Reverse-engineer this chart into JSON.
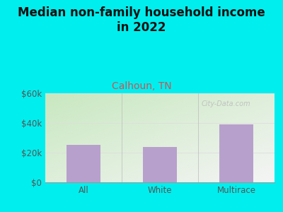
{
  "title": "Median non-family household income\nin 2022",
  "subtitle": "Calhoun, TN",
  "categories": [
    "All",
    "White",
    "Multirace"
  ],
  "values": [
    25000,
    24000,
    39000
  ],
  "bar_color": "#b8a0cc",
  "ylim": [
    0,
    60000
  ],
  "yticks": [
    0,
    20000,
    40000,
    60000
  ],
  "ytick_labels": [
    "$0",
    "$20k",
    "$40k",
    "$60k"
  ],
  "title_fontsize": 12,
  "subtitle_fontsize": 10,
  "subtitle_color": "#cc5555",
  "title_color": "#111111",
  "bg_color": "#00eeee",
  "plot_bg_top_left": "#c8e8c0",
  "plot_bg_bottom_right": "#f5f5f5",
  "watermark": "City-Data.com",
  "grid_color": "#dddddd",
  "tick_label_color": "#555555",
  "divider_color": "#bbbbbb"
}
